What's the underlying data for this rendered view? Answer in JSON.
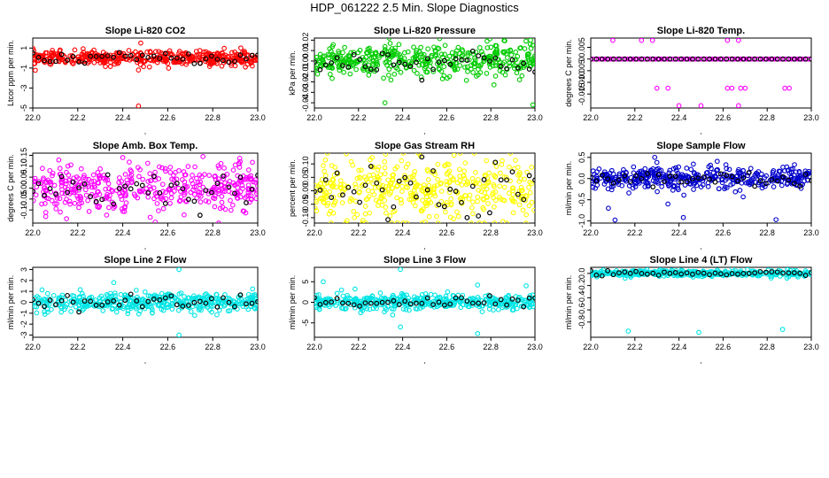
{
  "figure": {
    "title": "HDP_061222  2.5 Min. Slope Diagnostics"
  },
  "chart_data": [
    {
      "type": "scatter",
      "title": "Slope Li-820 CO2",
      "ylabel": "Ltcor ppm per min.",
      "xlabel": "",
      "xlim": [
        22.0,
        23.0
      ],
      "ylim": [
        -5,
        2
      ],
      "xticks": [
        22.0,
        22.2,
        22.4,
        22.6,
        22.8,
        23.0
      ],
      "xtick_labels": [
        "22.0",
        "22.2",
        "22.4",
        "22.6",
        "22.8",
        "23.0"
      ],
      "yticks": [
        1,
        -1,
        -3,
        -5
      ],
      "ytick_labels": [
        "1",
        "-1",
        "-3",
        "-5"
      ],
      "color": "#ff0000",
      "center": 0.0,
      "spread": 0.35,
      "outliers": [
        [
          22.47,
          -4.8
        ],
        [
          22.48,
          1.5
        ],
        [
          22.47,
          -1.2
        ]
      ]
    },
    {
      "type": "scatter",
      "title": "Slope Li-820 Pressure",
      "ylabel": "kPa per min.",
      "xlabel": "",
      "xlim": [
        22.0,
        23.0
      ],
      "ylim": [
        -0.045,
        0.022
      ],
      "xticks": [
        22.0,
        22.2,
        22.4,
        22.6,
        22.8,
        23.0
      ],
      "xtick_labels": [
        "22.0",
        "22.2",
        "22.4",
        "22.6",
        "22.8",
        "23.0"
      ],
      "yticks": [
        0.02,
        0.01,
        0.0,
        -0.01,
        -0.02,
        -0.03,
        -0.04
      ],
      "ytick_labels": [
        "0.02",
        "0.01",
        "0.00",
        "-0.01",
        "-0.02",
        "-0.03",
        "-0.04"
      ],
      "color": "#00cc00",
      "center": 0.0,
      "spread": 0.008,
      "outliers": [
        [
          22.32,
          -0.04
        ],
        [
          22.99,
          -0.042
        ],
        [
          22.98,
          0.02
        ],
        [
          22.93,
          -0.018
        ]
      ]
    },
    {
      "type": "scatter",
      "title": "Slope Li-820 Temp.",
      "ylabel": "degrees C per min.",
      "xlabel": "",
      "xlim": [
        22.0,
        23.0
      ],
      "ylim": [
        -0.021,
        0.009
      ],
      "xticks": [
        22.0,
        22.2,
        22.4,
        22.6,
        22.8,
        23.0
      ],
      "xtick_labels": [
        "22.0",
        "22.2",
        "22.4",
        "22.6",
        "22.8",
        "23.0"
      ],
      "yticks": [
        0.005,
        0.0,
        -0.005,
        -0.01,
        -0.015
      ],
      "ytick_labels": [
        "0.005",
        "0",
        "-0.005",
        "-0.010",
        "-0.015"
      ],
      "color": "#ff00ff",
      "center": 0.0,
      "spread": 0.0,
      "outliers": [
        [
          22.1,
          0.008
        ],
        [
          22.23,
          0.008
        ],
        [
          22.28,
          0.008
        ],
        [
          22.62,
          0.008
        ],
        [
          22.67,
          0.008
        ],
        [
          22.3,
          -0.0125
        ],
        [
          22.35,
          -0.0125
        ],
        [
          22.62,
          -0.0125
        ],
        [
          22.64,
          -0.0125
        ],
        [
          22.68,
          -0.0125
        ],
        [
          22.7,
          -0.0125
        ],
        [
          22.88,
          -0.0125
        ],
        [
          22.9,
          -0.0125
        ],
        [
          22.4,
          -0.02
        ],
        [
          22.5,
          -0.02
        ],
        [
          22.67,
          -0.02
        ]
      ]
    },
    {
      "type": "scatter",
      "title": "Slope Amb. Box Temp.",
      "ylabel": "degrees C per min.",
      "xlabel": "",
      "xlim": [
        22.0,
        23.0
      ],
      "ylim": [
        -0.16,
        0.16
      ],
      "xticks": [
        22.0,
        22.2,
        22.4,
        22.6,
        22.8,
        23.0
      ],
      "xtick_labels": [
        "22.0",
        "22.2",
        "22.4",
        "22.6",
        "22.8",
        "23.0"
      ],
      "yticks": [
        0.15,
        0.1,
        0.05,
        0.0,
        -0.05,
        -0.1
      ],
      "ytick_labels": [
        "0.15",
        "0.10",
        "0.05",
        "0.00",
        "-0.05",
        "-0.10"
      ],
      "color": "#ff00ff",
      "center": 0.0,
      "spread": 0.055,
      "outliers": [
        [
          22.4,
          0.14
        ],
        [
          22.15,
          -0.14
        ]
      ]
    },
    {
      "type": "scatter",
      "title": "Slope Gas Stream RH",
      "ylabel": "percent per min.",
      "xlabel": "",
      "xlim": [
        22.0,
        23.0
      ],
      "ylim": [
        -0.12,
        0.14
      ],
      "xticks": [
        22.0,
        22.2,
        22.4,
        22.6,
        22.8,
        23.0
      ],
      "xtick_labels": [
        "22.0",
        "22.2",
        "22.4",
        "22.6",
        "22.8",
        "23.0"
      ],
      "yticks": [
        0.1,
        0.05,
        0.0,
        -0.05,
        -0.1
      ],
      "ytick_labels": [
        "0.10",
        "0.05",
        "0.00",
        "-0.05",
        "-0.10"
      ],
      "color": "#ffff00",
      "center": 0.0,
      "spread": 0.06,
      "outliers": [
        [
          22.48,
          0.13
        ],
        [
          22.22,
          -0.11
        ]
      ]
    },
    {
      "type": "scatter",
      "title": "Slope Sample Flow",
      "ylabel": "ml/min per min.",
      "xlabel": "",
      "xlim": [
        22.0,
        23.0
      ],
      "ylim": [
        -1.05,
        0.6
      ],
      "xticks": [
        22.0,
        22.2,
        22.4,
        22.6,
        22.8,
        23.0
      ],
      "xtick_labels": [
        "22.0",
        "22.2",
        "22.4",
        "22.6",
        "22.8",
        "23.0"
      ],
      "yticks": [
        0.5,
        0.0,
        -0.5,
        -1.0
      ],
      "ytick_labels": [
        "0.5",
        "0.0",
        "-0.5",
        "-1.0"
      ],
      "color": "#0000cc",
      "center": 0.0,
      "spread": 0.13,
      "outliers": [
        [
          22.29,
          0.5
        ],
        [
          22.3,
          0.38
        ],
        [
          22.08,
          -0.7
        ],
        [
          22.11,
          -0.98
        ],
        [
          22.42,
          -0.92
        ],
        [
          22.84,
          -0.97
        ],
        [
          22.35,
          -0.6
        ]
      ]
    },
    {
      "type": "scatter",
      "title": "Slope Line 2 Flow",
      "ylabel": "ml/min per min.",
      "xlabel": "",
      "xlim": [
        22.0,
        23.0
      ],
      "ylim": [
        -3.2,
        3.2
      ],
      "xticks": [
        22.0,
        22.2,
        22.4,
        22.6,
        22.8,
        23.0
      ],
      "xtick_labels": [
        "22.0",
        "22.2",
        "22.4",
        "22.6",
        "22.8",
        "23.0"
      ],
      "yticks": [
        3,
        2,
        1,
        0,
        -1,
        -2,
        -3
      ],
      "ytick_labels": [
        "3",
        "2",
        "1",
        "0",
        "-1",
        "-2",
        "-3"
      ],
      "color": "#00e5e5",
      "center": 0.0,
      "spread": 0.45,
      "outliers": [
        [
          22.65,
          3.0
        ],
        [
          22.65,
          -3.0
        ],
        [
          22.36,
          1.8
        ],
        [
          22.46,
          1.1
        ]
      ]
    },
    {
      "type": "scatter",
      "title": "Slope Line 3 Flow",
      "ylabel": "ml/min per min.",
      "xlabel": "",
      "xlim": [
        22.0,
        23.0
      ],
      "ylim": [
        -8.5,
        8.5
      ],
      "xticks": [
        22.0,
        22.2,
        22.4,
        22.6,
        22.8,
        23.0
      ],
      "xtick_labels": [
        "22.0",
        "22.2",
        "22.4",
        "22.6",
        "22.8",
        "23.0"
      ],
      "yticks": [
        5,
        0,
        -5
      ],
      "ytick_labels": [
        "5",
        "0",
        "-5"
      ],
      "color": "#00e5e5",
      "center": 0.0,
      "spread": 0.9,
      "outliers": [
        [
          22.39,
          8.0
        ],
        [
          22.39,
          -6.0
        ],
        [
          22.74,
          -7.6
        ],
        [
          22.04,
          5.0
        ],
        [
          22.96,
          4.0
        ],
        [
          22.74,
          4.2
        ]
      ]
    },
    {
      "type": "scatter",
      "title": "Slope Line 4 (LT) Flow",
      "ylabel": "ml/min per min.",
      "xlabel": "",
      "xlim": [
        22.0,
        23.0
      ],
      "ylim": [
        -1.05,
        0.1
      ],
      "xticks": [
        22.0,
        22.2,
        22.4,
        22.6,
        22.8,
        23.0
      ],
      "xtick_labels": [
        "22.0",
        "22.2",
        "22.4",
        "22.6",
        "22.8",
        "23.0"
      ],
      "yticks": [
        0.0,
        -0.2,
        -0.4,
        -0.6,
        -0.8
      ],
      "ytick_labels": [
        "0.0",
        "-0.2",
        "-0.4",
        "-0.6",
        "-0.8"
      ],
      "color": "#00e5e5",
      "center": 0.0,
      "spread": 0.025,
      "outliers": [
        [
          22.17,
          -0.95
        ],
        [
          22.49,
          -0.97
        ],
        [
          22.87,
          -0.92
        ]
      ]
    }
  ]
}
